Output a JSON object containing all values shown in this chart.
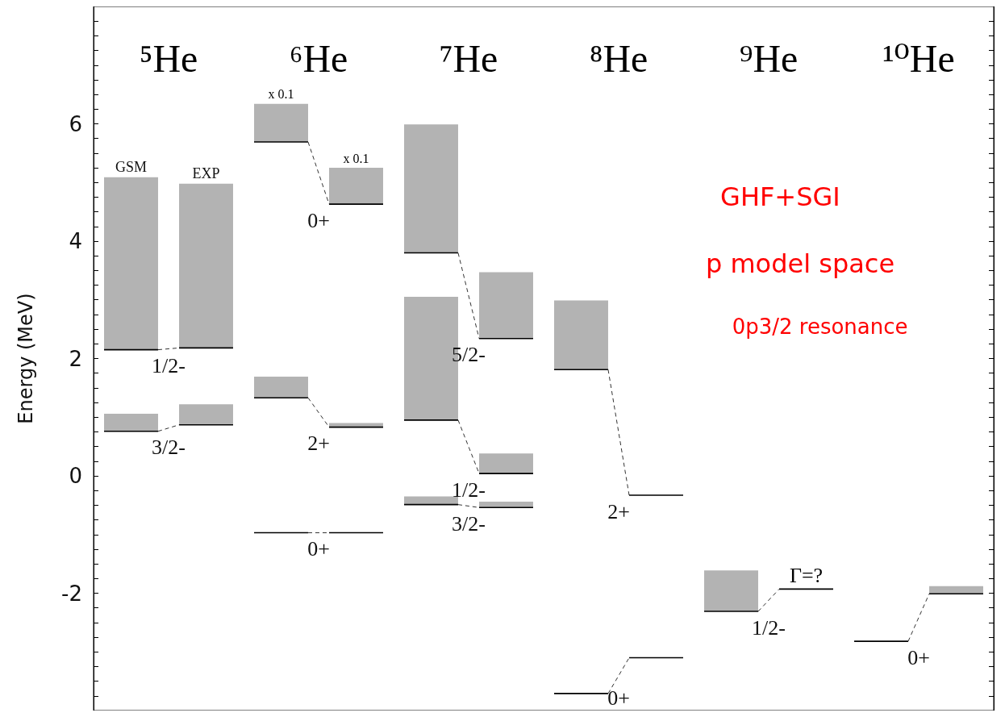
{
  "chart_data": {
    "type": "bar",
    "ylabel": "Energy (MeV)",
    "categories": [
      "⁵He",
      "⁶He",
      "⁷He",
      "⁸He",
      "⁹He",
      "¹⁰He"
    ],
    "ylim": [
      -4,
      8
    ],
    "yticks": [
      {
        "value": -3.75,
        "label": null
      },
      {
        "value": -3.5,
        "label": null
      },
      {
        "value": -3.25,
        "label": null
      },
      {
        "value": -3,
        "label": null
      },
      {
        "value": -2.75,
        "label": null
      },
      {
        "value": -2.5,
        "label": null
      },
      {
        "value": -2.25,
        "label": null
      },
      -2,
      {
        "value": -1.75,
        "label": null
      },
      {
        "value": -1.5,
        "label": null
      },
      {
        "value": -1.25,
        "label": null
      },
      {
        "value": -1,
        "label": null
      },
      {
        "value": -0.75,
        "label": null
      },
      {
        "value": -0.5,
        "label": null
      },
      {
        "value": -0.25,
        "label": null
      },
      0,
      {
        "value": 0.25,
        "label": null
      },
      {
        "value": 0.5,
        "label": null
      },
      {
        "value": 0.75,
        "label": null
      },
      {
        "value": 1,
        "label": null
      },
      {
        "value": 1.25,
        "label": null
      },
      {
        "value": 1.5,
        "label": null
      },
      {
        "value": 1.75,
        "label": null
      },
      2,
      {
        "value": 2.25,
        "label": null
      },
      {
        "value": 2.5,
        "label": null
      },
      {
        "value": 2.75,
        "label": null
      },
      {
        "value": 3,
        "label": null
      },
      {
        "value": 3.25,
        "label": null
      },
      {
        "value": 3.5,
        "label": null
      },
      {
        "value": 3.75,
        "label": null
      },
      4,
      {
        "value": 4.25,
        "label": null
      },
      {
        "value": 4.5,
        "label": null
      },
      {
        "value": 4.75,
        "label": null
      },
      {
        "value": 5,
        "label": null
      },
      {
        "value": 5.25,
        "label": null
      },
      {
        "value": 5.5,
        "label": null
      },
      {
        "value": 5.75,
        "label": null
      },
      6,
      {
        "value": 6.25,
        "label": null
      },
      {
        "value": 6.5,
        "label": null
      },
      {
        "value": 6.75,
        "label": null
      },
      {
        "value": 7,
        "label": null
      },
      {
        "value": 7.25,
        "label": null
      },
      {
        "value": 7.5,
        "label": null
      },
      {
        "value": 7.75,
        "label": null
      }
    ],
    "grid": false,
    "line_style": "dashed",
    "series": [
      {
        "colors": [
          "#b3b3b3",
          "#000000",
          "#b3b3b3",
          "#000000",
          "#b3b3b3",
          "#000000"
        ],
        "base": [
          0.76,
          -0.97,
          -0.49,
          -3.71,
          -2.31,
          -2.82
        ],
        "values": [
          0.3,
          0,
          0.14,
          0,
          0.7,
          0
        ],
        "value_labels": [
          "3/2-",
          "0+",
          "3/2-",
          "0+",
          "1/2-",
          "0+"
        ]
      },
      {
        "name": "GSM",
        "color": "#b3b3b3",
        "base": [
          2.15,
          1.33,
          0.95,
          1.81,
          null,
          null
        ],
        "values": [
          2.94,
          0.36,
          2.1,
          1.18,
          null,
          null
        ],
        "value_labels": [
          "1/2-",
          "2+",
          "1/2-",
          "2+",
          null,
          null
        ]
      },
      {
        "color": "#b3b3b3",
        "base": [
          null,
          5.69,
          3.8,
          null,
          null,
          null
        ],
        "values": [
          null,
          0.65,
          2.19,
          null,
          null,
          null
        ],
        "value_labels": [
          null,
          "0+",
          "5/2-",
          null,
          null,
          null
        ]
      },
      {
        "colors": [
          "#b3b3b3",
          "#000000",
          "#b3b3b3",
          "#000000",
          "#000000",
          "#b3b3b3"
        ],
        "base": [
          0.87,
          -0.97,
          -0.54,
          -3.1,
          -1.93,
          -2.01
        ],
        "values": [
          0.35,
          0,
          0.1,
          0,
          0,
          0.13
        ]
      },
      {
        "name": "EXP",
        "colors": [
          "#b3b3b3",
          "#b3b3b3",
          "#b3b3b3",
          "#000000",
          null,
          null
        ],
        "base": [
          2.18,
          0.83,
          0.04,
          -0.33,
          null,
          null
        ],
        "values": [
          2.8,
          0.07,
          0.34,
          0,
          null,
          null
        ]
      },
      {
        "color": "#b3b3b3",
        "base": [
          null,
          4.63,
          2.34,
          null,
          null,
          null
        ],
        "values": [
          null,
          0.62,
          1.13,
          null,
          null,
          null
        ]
      }
    ],
    "annotations": [
      "x 0.1",
      "x 0.1",
      {
        "text": "Γ=?",
        "y": -1.93
      },
      "GHF+SGI",
      "p model space",
      "0p3/2 resonance"
    ]
  }
}
